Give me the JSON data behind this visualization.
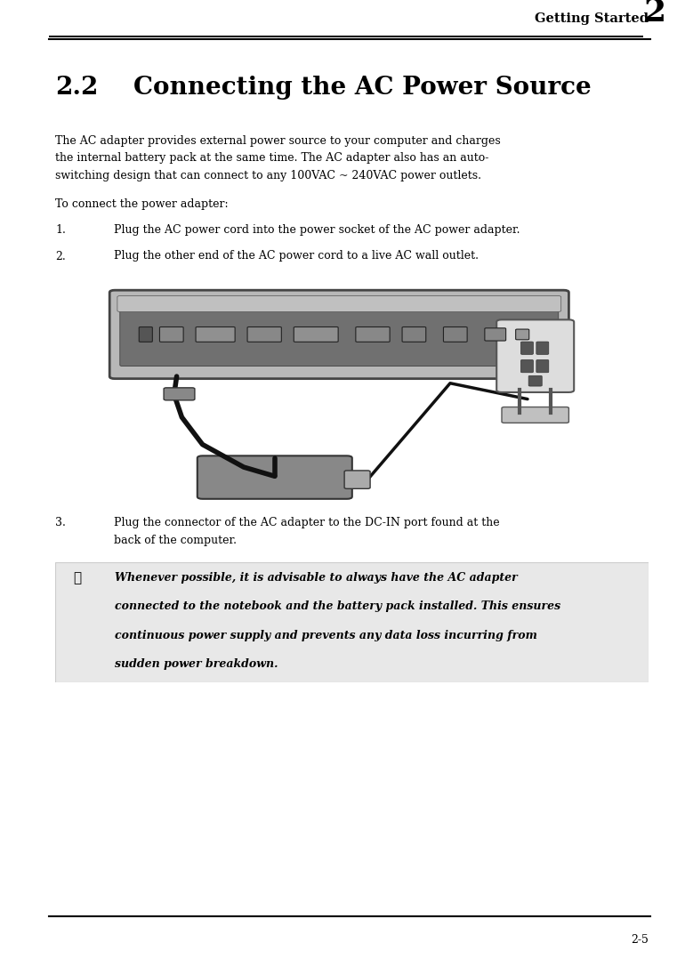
{
  "page_width": 7.61,
  "page_height": 10.78,
  "bg_color": "#ffffff",
  "header_text": "Getting Started",
  "header_number": "2",
  "footer_text": "2-5",
  "section_number": "2.2",
  "section_title": "Connecting the AC Power Source",
  "para1_line1": "The AC adapter provides external power source to your computer and charges",
  "para1_line2": "the internal battery pack at the same time. The AC adapter also has an auto-",
  "para1_line3": "switching design that can connect to any 100VAC ~ 240VAC power outlets.",
  "para2": "To connect the power adapter:",
  "item1_num": "1.",
  "item1_text": "Plug the AC power cord into the power socket of the AC power adapter.",
  "item2_num": "2.",
  "item2_text": "Plug the other end of the AC power cord to a live AC wall outlet.",
  "item3_num": "3.",
  "item3_line1": "Plug the connector of the AC adapter to the DC-IN port found at the",
  "item3_line2": "back of the computer.",
  "note_line1": "Whenever possible, it is advisable to always have the AC adapter",
  "note_line2": "connected to the notebook and the battery pack installed. This ensures",
  "note_line3": "continuous power supply and prevents any data loss incurring from",
  "note_line4": "sudden power breakdown.",
  "note_bg": "#e8e8e8",
  "text_color": "#000000",
  "lm": 0.09,
  "rm": 0.95,
  "indent": 0.175
}
